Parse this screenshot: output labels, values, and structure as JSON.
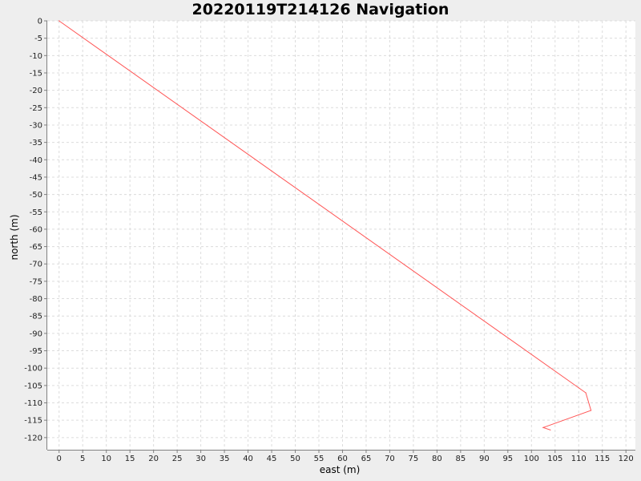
{
  "chart_data": {
    "type": "line",
    "title": "20220119T214126 Navigation",
    "xlabel": "east (m)",
    "ylabel": "north (m)",
    "xlim": [
      -2.5,
      122
    ],
    "ylim": [
      -123.5,
      0
    ],
    "x_ticks": [
      0,
      5,
      10,
      15,
      20,
      25,
      30,
      35,
      40,
      45,
      50,
      55,
      60,
      65,
      70,
      75,
      80,
      85,
      90,
      95,
      100,
      105,
      110,
      115,
      120
    ],
    "y_ticks": [
      0,
      -5,
      -10,
      -15,
      -20,
      -25,
      -30,
      -35,
      -40,
      -45,
      -50,
      -55,
      -60,
      -65,
      -70,
      -75,
      -80,
      -85,
      -90,
      -95,
      -100,
      -105,
      -110,
      -115,
      -120
    ],
    "grid": true,
    "series": [
      {
        "color": "#ff5555",
        "points": [
          {
            "x": 0,
            "y": 0
          },
          {
            "x": 111.5,
            "y": -107.1
          },
          {
            "x": 112.6,
            "y": -112.2
          },
          {
            "x": 102.5,
            "y": -117.1
          },
          {
            "x": 104.0,
            "y": -117.8
          }
        ]
      }
    ]
  }
}
